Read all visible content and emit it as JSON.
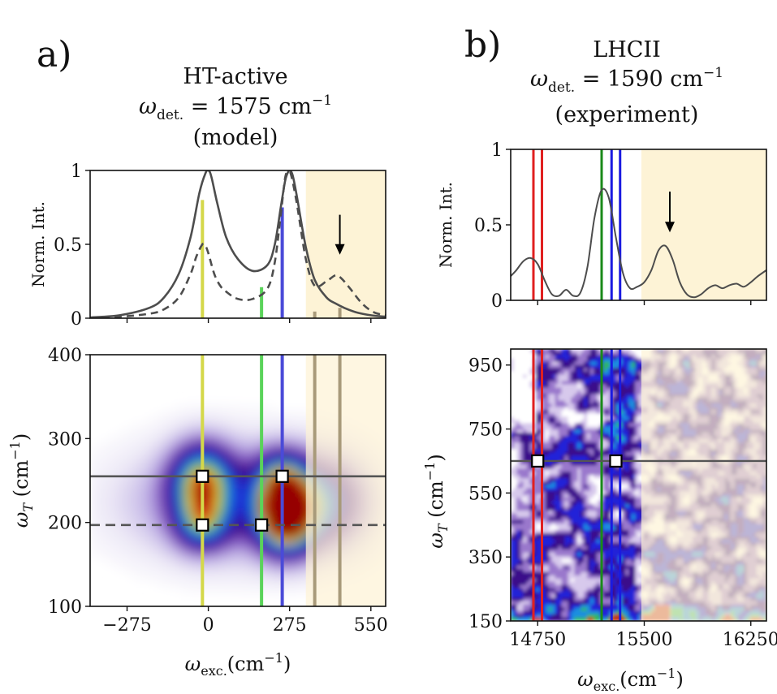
{
  "panels": {
    "a": {
      "label": "a)",
      "title_line1": "HT-active",
      "title_line2": "ω_det. = 1575 cm^-1",
      "title_line3": "(model)"
    },
    "b": {
      "label": "b)",
      "title_line1": "LHCII",
      "title_line2": "ω_det. = 1590 cm^-1",
      "title_line3": "(experiment)"
    }
  },
  "colors": {
    "yellow": "#d4d84a",
    "green": "#5ad35a",
    "blue": "#4a4ad8",
    "tan": "#a89a7a",
    "shade": "#fdf3d6",
    "curve": "#4d4d4d",
    "red": "#e02020",
    "darkgreen": "#1a8a1a",
    "pureblue": "#1a1ae0"
  },
  "chart_data": [
    {
      "id": "a_top",
      "type": "line",
      "ylabel": "Norm. Int.",
      "xlim": [
        -400,
        600
      ],
      "ylim": [
        0,
        1
      ],
      "yticks": [
        0,
        0.5,
        1
      ],
      "ytick_labels": [
        "0",
        "0.5",
        "1"
      ],
      "xticks": [
        -275,
        0,
        275,
        550
      ],
      "shaded_region": [
        330,
        600
      ],
      "series": [
        {
          "name": "solid",
          "style": "solid",
          "x": [
            -400,
            -300,
            -200,
            -150,
            -100,
            -60,
            -30,
            -10,
            0,
            10,
            30,
            60,
            100,
            150,
            200,
            225,
            245,
            260,
            270,
            275,
            285,
            300,
            330,
            360,
            400,
            430,
            460,
            500,
            550,
            600
          ],
          "y": [
            0.005,
            0.02,
            0.07,
            0.14,
            0.3,
            0.55,
            0.85,
            0.98,
            1,
            0.96,
            0.78,
            0.55,
            0.4,
            0.32,
            0.36,
            0.5,
            0.75,
            0.93,
            0.99,
            1,
            0.97,
            0.82,
            0.48,
            0.26,
            0.14,
            0.1,
            0.07,
            0.04,
            0.02,
            0.01
          ]
        },
        {
          "name": "dashed",
          "style": "dashed",
          "x": [
            -400,
            -300,
            -200,
            -150,
            -100,
            -60,
            -40,
            -20,
            -10,
            0,
            20,
            40,
            60,
            100,
            150,
            200,
            225,
            245,
            260,
            270,
            280,
            300,
            330,
            360,
            400,
            430,
            450,
            480,
            520,
            560,
            600
          ],
          "y": [
            0.002,
            0.01,
            0.03,
            0.06,
            0.14,
            0.3,
            0.42,
            0.5,
            0.49,
            0.44,
            0.3,
            0.22,
            0.18,
            0.13,
            0.13,
            0.2,
            0.38,
            0.7,
            0.95,
            0.99,
            0.97,
            0.77,
            0.4,
            0.22,
            0.25,
            0.29,
            0.27,
            0.2,
            0.1,
            0.04,
            0.02
          ]
        }
      ],
      "sticks": [
        {
          "x": -20,
          "height": 0.8,
          "color": "yellow"
        },
        {
          "x": 180,
          "height": 0.21,
          "color": "green"
        },
        {
          "x": 250,
          "height": 0.75,
          "color": "blue"
        },
        {
          "x": 360,
          "height": 0.045,
          "color": "tan"
        },
        {
          "x": 445,
          "height": 0.07,
          "color": "tan"
        }
      ],
      "arrow": {
        "x": 445,
        "y_from": 0.7,
        "y_to": 0.43
      }
    },
    {
      "id": "a_bottom",
      "type": "heatmap",
      "xlabel": "ω_exc.(cm^-1)",
      "ylabel": "ω_T (cm^-1)",
      "xlim": [
        -400,
        600
      ],
      "ylim": [
        100,
        400
      ],
      "xticks": [
        -275,
        0,
        275,
        550
      ],
      "xtick_labels": [
        "−275",
        "0",
        "275",
        "550"
      ],
      "yticks": [
        100,
        200,
        300,
        400
      ],
      "ytick_labels": [
        "100",
        "200",
        "300",
        "400"
      ],
      "shaded_region": [
        330,
        600
      ],
      "hlines": [
        {
          "y": 255,
          "style": "solid"
        },
        {
          "y": 197,
          "style": "dashed"
        }
      ],
      "vlines": [
        {
          "x": -20,
          "color": "yellow"
        },
        {
          "x": 180,
          "color": "green"
        },
        {
          "x": 250,
          "color": "blue"
        },
        {
          "x": 360,
          "color": "tan"
        },
        {
          "x": 445,
          "color": "tan"
        }
      ],
      "markers": [
        {
          "x": -20,
          "y": 255
        },
        {
          "x": 250,
          "y": 255
        },
        {
          "x": -20,
          "y": 197
        },
        {
          "x": 180,
          "y": 197
        }
      ],
      "blobs": [
        {
          "x": -20,
          "y": 250,
          "sx": 70,
          "sy": 30,
          "amp": 0.7
        },
        {
          "x": 265,
          "y": 205,
          "sx": 65,
          "sy": 28,
          "amp": 1.0
        },
        {
          "x": 250,
          "y": 250,
          "sx": 60,
          "sy": 25,
          "amp": 0.55
        },
        {
          "x": 100,
          "y": 225,
          "sx": 240,
          "sy": 45,
          "amp": 0.32
        },
        {
          "x": -20,
          "y": 198,
          "sx": 60,
          "sy": 22,
          "amp": 0.45
        },
        {
          "x": 400,
          "y": 225,
          "sx": 90,
          "sy": 35,
          "amp": 0.4
        }
      ]
    },
    {
      "id": "b_top",
      "type": "line",
      "ylabel": "Norm. Int.",
      "xlim": [
        14560,
        16360
      ],
      "ylim": [
        0,
        1
      ],
      "yticks": [
        0,
        0.5,
        1
      ],
      "ytick_labels": [
        "0",
        "0.5",
        "1"
      ],
      "xticks": [
        14750,
        15500,
        16250
      ],
      "shaded_region": [
        15480,
        16360
      ],
      "series": [
        {
          "name": "experiment",
          "style": "solid",
          "x": [
            14560,
            14600,
            14650,
            14700,
            14750,
            14800,
            14850,
            14900,
            14950,
            15000,
            15050,
            15100,
            15150,
            15200,
            15250,
            15300,
            15350,
            15400,
            15450,
            15500,
            15550,
            15600,
            15650,
            15700,
            15750,
            15800,
            15850,
            15900,
            15950,
            16000,
            16050,
            16100,
            16150,
            16200,
            16250,
            16300,
            16360
          ],
          "y": [
            0.16,
            0.2,
            0.26,
            0.28,
            0.24,
            0.13,
            0.04,
            0.03,
            0.07,
            0.03,
            0.05,
            0.22,
            0.55,
            0.73,
            0.68,
            0.42,
            0.18,
            0.08,
            0.09,
            0.12,
            0.2,
            0.33,
            0.36,
            0.27,
            0.12,
            0.04,
            0.02,
            0.04,
            0.08,
            0.1,
            0.08,
            0.1,
            0.11,
            0.09,
            0.12,
            0.16,
            0.2
          ]
        }
      ],
      "vlines": [
        {
          "x": 14720,
          "color": "red"
        },
        {
          "x": 14780,
          "color": "red"
        },
        {
          "x": 15200,
          "color": "darkgreen"
        },
        {
          "x": 15270,
          "color": "pureblue"
        },
        {
          "x": 15330,
          "color": "pureblue"
        }
      ],
      "arrow": {
        "x": 15680,
        "y_from": 0.72,
        "y_to": 0.45
      }
    },
    {
      "id": "b_bottom",
      "type": "heatmap",
      "xlabel": "ω_exc.(cm^-1)",
      "ylabel": "ω_T (cm^-1)",
      "xlim": [
        14560,
        16360
      ],
      "ylim": [
        150,
        1000
      ],
      "xticks": [
        14750,
        15500,
        16250
      ],
      "xtick_labels": [
        "14750",
        "15500",
        "16250"
      ],
      "yticks": [
        150,
        350,
        550,
        750,
        950
      ],
      "ytick_labels": [
        "150",
        "350",
        "550",
        "750",
        "950"
      ],
      "shaded_region": [
        15480,
        16360
      ],
      "hlines": [
        {
          "y": 650,
          "style": "solid"
        }
      ],
      "vlines": [
        {
          "x": 14720,
          "color": "red"
        },
        {
          "x": 14780,
          "color": "red"
        },
        {
          "x": 15200,
          "color": "darkgreen"
        },
        {
          "x": 15270,
          "color": "pureblue"
        },
        {
          "x": 15330,
          "color": "pureblue"
        }
      ],
      "markers": [
        {
          "x": 14750,
          "y": 650
        },
        {
          "x": 15300,
          "y": 650
        }
      ]
    }
  ]
}
